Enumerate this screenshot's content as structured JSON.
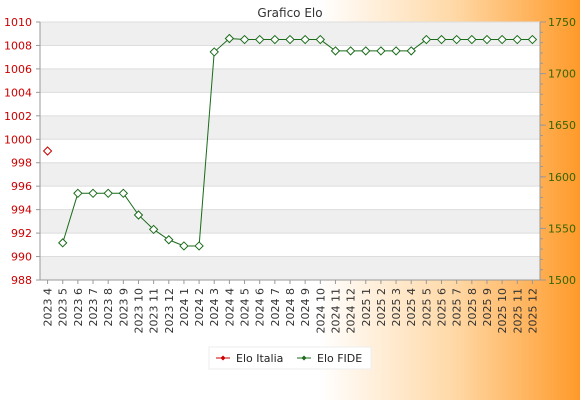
{
  "chart_data": {
    "type": "line",
    "title": "Grafico Elo",
    "x": [
      "2023 4",
      "2023 5",
      "2023 6",
      "2023 7",
      "2023 8",
      "2023 9",
      "2023 10",
      "2023 11",
      "2023 12",
      "2024 1",
      "2024 2",
      "2024 3",
      "2024 4",
      "2024 5",
      "2024 6",
      "2024 7",
      "2024 8",
      "2024 9",
      "2024 10",
      "2024 11",
      "2024 12",
      "2025 1",
      "2025 2",
      "2025 3",
      "2025 4",
      "2025 5",
      "2025 6",
      "2025 7",
      "2025 8",
      "2025 9",
      "2025 10",
      "2025 11",
      "2025 12"
    ],
    "y_left": {
      "range": [
        988,
        1010
      ],
      "ticks": [
        988,
        990,
        992,
        994,
        996,
        998,
        1000,
        1002,
        1004,
        1006,
        1008,
        1010
      ],
      "color": "#cc0000"
    },
    "y_right": {
      "range": [
        1500,
        1750
      ],
      "ticks": [
        1500,
        1550,
        1600,
        1650,
        1700,
        1750
      ],
      "color": "#336600"
    },
    "series": [
      {
        "name": "Elo Italia",
        "axis": "left",
        "color": "#cc0000",
        "values": [
          999,
          null,
          null,
          null,
          null,
          null,
          null,
          null,
          null,
          null,
          null,
          null,
          null,
          null,
          null,
          null,
          null,
          null,
          null,
          null,
          null,
          null,
          null,
          null,
          null,
          null,
          null,
          null,
          null,
          null,
          null,
          null,
          null
        ]
      },
      {
        "name": "Elo FIDE",
        "axis": "right",
        "color": "#1a6b1a",
        "values": [
          null,
          1536,
          1584,
          1584,
          1584,
          1584,
          1563,
          1549,
          1539,
          1533,
          1533,
          1721,
          1734,
          1733,
          1733,
          1733,
          1733,
          1733,
          1733,
          1722,
          1722,
          1722,
          1722,
          1722,
          1722,
          1733,
          1733,
          1733,
          1733,
          1733,
          1733,
          1733,
          1733
        ]
      }
    ],
    "grid": true,
    "legend_position": "bottom"
  }
}
